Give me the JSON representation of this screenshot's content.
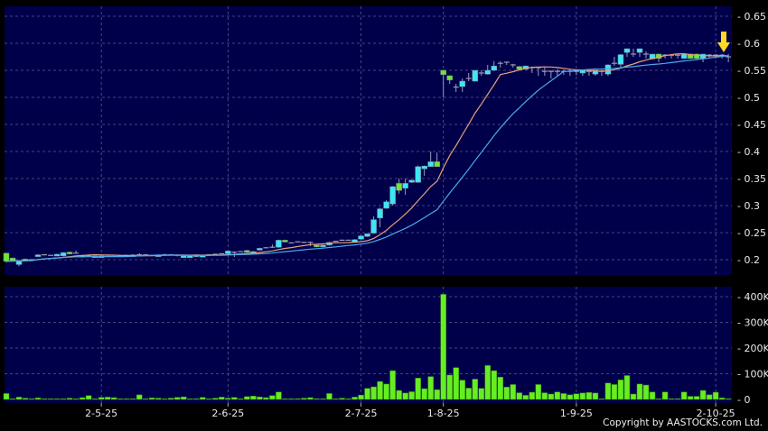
{
  "copyright": "Copyright by AASTOCKS.com Ltd.",
  "chart_data": {
    "type": "candlestick",
    "colors": {
      "background": "#00004a",
      "up_candle": "#3ee6f5",
      "down_candle": "#6ee82a",
      "unchanged_candle": "#9a9ab4",
      "volume_bar": "#66ee22",
      "ma_short": "#e8a07a",
      "ma_long": "#4aa8ec",
      "marker_arrow": "#ffd820",
      "grid": "#5a5a8a"
    },
    "x_ticks": [
      {
        "index": 15,
        "label": "2-5-25"
      },
      {
        "index": 35,
        "label": "2-6-25"
      },
      {
        "index": 56,
        "label": "2-7-25"
      },
      {
        "index": 69,
        "label": "1-8-25"
      },
      {
        "index": 90,
        "label": "1-9-25"
      },
      {
        "index": 112,
        "label": "2-10-25"
      }
    ],
    "price_axis": {
      "range": [
        0.185,
        0.67
      ],
      "ticks": [
        0.2,
        0.25,
        0.3,
        0.35,
        0.4,
        0.45,
        0.5,
        0.55,
        0.6,
        0.65
      ],
      "tick_labels": [
        "0.2",
        "0.25",
        "0.3",
        "0.35",
        "0.4",
        "0.45",
        "0.5",
        "0.55",
        "0.6",
        "0.65"
      ],
      "grid": true
    },
    "volume_axis": {
      "range": [
        0,
        420000
      ],
      "ticks": [
        0,
        100000,
        200000,
        300000,
        400000
      ],
      "tick_labels": [
        "0",
        "100K",
        "200K",
        "300K",
        "400K"
      ],
      "grid": true
    },
    "moving_averages": [
      {
        "window": 10,
        "color_key": "ma_short"
      },
      {
        "window": 20,
        "color_key": "ma_long"
      }
    ],
    "ohlc_fields": [
      "open",
      "high",
      "low",
      "close"
    ],
    "ohlc": [
      [
        0.212,
        0.213,
        0.195,
        0.197
      ],
      [
        0.203,
        0.204,
        0.197,
        0.198
      ],
      [
        0.191,
        0.199,
        0.188,
        0.198
      ],
      [
        0.201,
        0.202,
        0.198,
        0.199
      ],
      [
        0.2,
        0.201,
        0.199,
        0.2
      ],
      [
        0.206,
        0.21,
        0.205,
        0.209
      ],
      [
        0.209,
        0.21,
        0.208,
        0.209
      ],
      [
        0.208,
        0.209,
        0.207,
        0.208
      ],
      [
        0.209,
        0.211,
        0.208,
        0.21
      ],
      [
        0.207,
        0.214,
        0.206,
        0.213
      ],
      [
        0.214,
        0.215,
        0.21,
        0.211
      ],
      [
        0.212,
        0.217,
        0.211,
        0.212
      ],
      [
        0.208,
        0.209,
        0.205,
        0.206
      ],
      [
        0.207,
        0.208,
        0.206,
        0.207
      ],
      [
        0.205,
        0.208,
        0.204,
        0.207
      ],
      [
        0.207,
        0.208,
        0.204,
        0.205
      ],
      [
        0.206,
        0.207,
        0.205,
        0.206
      ],
      [
        0.206,
        0.207,
        0.205,
        0.206
      ],
      [
        0.207,
        0.208,
        0.206,
        0.207
      ],
      [
        0.208,
        0.209,
        0.207,
        0.208
      ],
      [
        0.208,
        0.21,
        0.207,
        0.209
      ],
      [
        0.209,
        0.212,
        0.208,
        0.209
      ],
      [
        0.209,
        0.21,
        0.208,
        0.209
      ],
      [
        0.208,
        0.209,
        0.207,
        0.208
      ],
      [
        0.208,
        0.21,
        0.207,
        0.209
      ],
      [
        0.209,
        0.211,
        0.208,
        0.209
      ],
      [
        0.209,
        0.21,
        0.208,
        0.209
      ],
      [
        0.208,
        0.209,
        0.206,
        0.208
      ],
      [
        0.206,
        0.208,
        0.205,
        0.207
      ],
      [
        0.206,
        0.208,
        0.205,
        0.207
      ],
      [
        0.206,
        0.21,
        0.205,
        0.209
      ],
      [
        0.207,
        0.209,
        0.206,
        0.208
      ],
      [
        0.209,
        0.21,
        0.208,
        0.209
      ],
      [
        0.21,
        0.211,
        0.209,
        0.21
      ],
      [
        0.211,
        0.212,
        0.21,
        0.211
      ],
      [
        0.211,
        0.217,
        0.21,
        0.216
      ],
      [
        0.214,
        0.215,
        0.205,
        0.214
      ],
      [
        0.215,
        0.216,
        0.214,
        0.215
      ],
      [
        0.217,
        0.218,
        0.213,
        0.214
      ],
      [
        0.214,
        0.216,
        0.213,
        0.215
      ],
      [
        0.218,
        0.222,
        0.217,
        0.221
      ],
      [
        0.222,
        0.223,
        0.221,
        0.222
      ],
      [
        0.223,
        0.228,
        0.222,
        0.223
      ],
      [
        0.223,
        0.237,
        0.222,
        0.236
      ],
      [
        0.236,
        0.237,
        0.232,
        0.233
      ],
      [
        0.231,
        0.232,
        0.23,
        0.231
      ],
      [
        0.233,
        0.234,
        0.232,
        0.233
      ],
      [
        0.232,
        0.233,
        0.231,
        0.232
      ],
      [
        0.232,
        0.233,
        0.225,
        0.232
      ],
      [
        0.227,
        0.228,
        0.223,
        0.224
      ],
      [
        0.224,
        0.228,
        0.223,
        0.227
      ],
      [
        0.227,
        0.233,
        0.226,
        0.232
      ],
      [
        0.234,
        0.235,
        0.233,
        0.234
      ],
      [
        0.236,
        0.237,
        0.235,
        0.236
      ],
      [
        0.236,
        0.237,
        0.235,
        0.236
      ],
      [
        0.233,
        0.238,
        0.232,
        0.237
      ],
      [
        0.238,
        0.245,
        0.237,
        0.244
      ],
      [
        0.243,
        0.248,
        0.242,
        0.248
      ],
      [
        0.249,
        0.28,
        0.248,
        0.274
      ],
      [
        0.277,
        0.296,
        0.26,
        0.294
      ],
      [
        0.295,
        0.31,
        0.294,
        0.307
      ],
      [
        0.303,
        0.336,
        0.3,
        0.335
      ],
      [
        0.341,
        0.35,
        0.322,
        0.328
      ],
      [
        0.332,
        0.35,
        0.32,
        0.341
      ],
      [
        0.343,
        0.348,
        0.342,
        0.347
      ],
      [
        0.343,
        0.374,
        0.342,
        0.372
      ],
      [
        0.368,
        0.374,
        0.355,
        0.373
      ],
      [
        0.372,
        0.4,
        0.372,
        0.381
      ],
      [
        0.381,
        0.398,
        0.372,
        0.372
      ],
      [
        0.55,
        0.551,
        0.5,
        0.542
      ],
      [
        0.54,
        0.541,
        0.525,
        0.532
      ],
      [
        0.519,
        0.525,
        0.51,
        0.519
      ],
      [
        0.52,
        0.535,
        0.51,
        0.53
      ],
      [
        0.535,
        0.545,
        0.53,
        0.535
      ],
      [
        0.53,
        0.55,
        0.529,
        0.55
      ],
      [
        0.545,
        0.55,
        0.54,
        0.545
      ],
      [
        0.543,
        0.56,
        0.542,
        0.55
      ],
      [
        0.55,
        0.567,
        0.549,
        0.558
      ],
      [
        0.563,
        0.567,
        0.555,
        0.563
      ],
      [
        0.565,
        0.566,
        0.56,
        0.565
      ],
      [
        0.56,
        0.562,
        0.555,
        0.56
      ],
      [
        0.557,
        0.558,
        0.55,
        0.552
      ],
      [
        0.552,
        0.559,
        0.551,
        0.558
      ],
      [
        0.555,
        0.557,
        0.545,
        0.555
      ],
      [
        0.555,
        0.556,
        0.54,
        0.555
      ],
      [
        0.548,
        0.555,
        0.54,
        0.548
      ],
      [
        0.548,
        0.55,
        0.535,
        0.548
      ],
      [
        0.548,
        0.552,
        0.54,
        0.548
      ],
      [
        0.548,
        0.551,
        0.542,
        0.548
      ],
      [
        0.548,
        0.552,
        0.54,
        0.548
      ],
      [
        0.548,
        0.55,
        0.541,
        0.548
      ],
      [
        0.545,
        0.551,
        0.54,
        0.55
      ],
      [
        0.548,
        0.552,
        0.54,
        0.548
      ],
      [
        0.543,
        0.551,
        0.54,
        0.55
      ],
      [
        0.548,
        0.55,
        0.54,
        0.548
      ],
      [
        0.543,
        0.561,
        0.54,
        0.56
      ],
      [
        0.563,
        0.575,
        0.558,
        0.563
      ],
      [
        0.561,
        0.58,
        0.555,
        0.579
      ],
      [
        0.583,
        0.59,
        0.575,
        0.59
      ],
      [
        0.58,
        0.59,
        0.575,
        0.58
      ],
      [
        0.583,
        0.59,
        0.575,
        0.59
      ],
      [
        0.58,
        0.585,
        0.572,
        0.58
      ],
      [
        0.571,
        0.58,
        0.57,
        0.58
      ],
      [
        0.58,
        0.581,
        0.565,
        0.572
      ],
      [
        0.578,
        0.58,
        0.572,
        0.578
      ],
      [
        0.578,
        0.58,
        0.572,
        0.578
      ],
      [
        0.578,
        0.58,
        0.572,
        0.578
      ],
      [
        0.572,
        0.58,
        0.571,
        0.58
      ],
      [
        0.58,
        0.581,
        0.571,
        0.572
      ],
      [
        0.58,
        0.581,
        0.571,
        0.572
      ],
      [
        0.572,
        0.58,
        0.565,
        0.58
      ],
      [
        0.578,
        0.58,
        0.572,
        0.578
      ],
      [
        0.578,
        0.58,
        0.572,
        0.578
      ],
      [
        0.578,
        0.58,
        0.572,
        0.578
      ],
      [
        0.575,
        0.58,
        0.565,
        0.575
      ]
    ],
    "volume_k": [
      23,
      3,
      9,
      5,
      1,
      6,
      1,
      1,
      1,
      1,
      5,
      1,
      7,
      15,
      1,
      8,
      9,
      7,
      2,
      2,
      2,
      18,
      1,
      6,
      5,
      1,
      5,
      8,
      10,
      1,
      1,
      8,
      1,
      5,
      9,
      5,
      8,
      2,
      11,
      13,
      10,
      7,
      15,
      29,
      2,
      2,
      3,
      5,
      7,
      3,
      0,
      23,
      0,
      5,
      0,
      9,
      17,
      43,
      49,
      70,
      60,
      112,
      35,
      25,
      30,
      83,
      42,
      89,
      38,
      409,
      95,
      124,
      75,
      44,
      79,
      43,
      132,
      112,
      87,
      48,
      58,
      26,
      16,
      28,
      58,
      26,
      21,
      29,
      23,
      18,
      22,
      25,
      27,
      25,
      2,
      64,
      58,
      76,
      93,
      21,
      60,
      56,
      29,
      2,
      29,
      3,
      3,
      29,
      12,
      12,
      35,
      18,
      28,
      6,
      1
    ]
  }
}
